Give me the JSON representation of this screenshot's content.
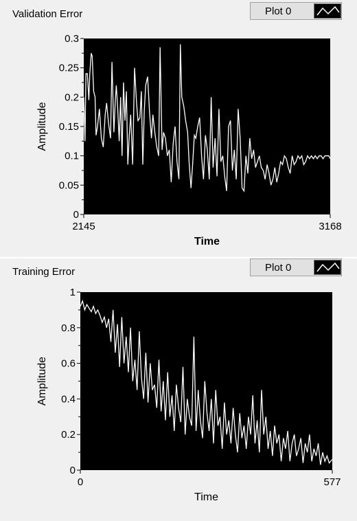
{
  "chart_data": [
    {
      "type": "line",
      "title": "Validation Error",
      "xlabel": "Time",
      "ylabel": "Amplitude",
      "xlim": [
        2145,
        3168
      ],
      "ylim": [
        0,
        0.3
      ],
      "x_ticks": [
        "2145",
        "3168"
      ],
      "y_ticks": [
        "0",
        "0.05",
        "0.1",
        "0.15",
        "0.2",
        "0.25",
        "0.3"
      ],
      "grid": false,
      "background": "#000000",
      "line_color": "#ffffff",
      "legend": {
        "label": "Plot 0",
        "placement": "top-right"
      },
      "series": [
        {
          "x": [
            2145,
            2150,
            2154,
            2160,
            2166,
            2170,
            2176,
            2180,
            2186,
            2192,
            2196,
            2202,
            2210,
            2218,
            2226,
            2234,
            2240,
            2248,
            2256,
            2262,
            2270,
            2276,
            2280,
            2286,
            2292,
            2298,
            2304,
            2310,
            2316,
            2322,
            2328,
            2334,
            2340,
            2348,
            2356,
            2364,
            2370,
            2378,
            2384,
            2390,
            2396,
            2402,
            2410,
            2418,
            2426,
            2432,
            2440,
            2448,
            2456,
            2462,
            2470,
            2476,
            2484,
            2492,
            2500,
            2508,
            2516,
            2524,
            2532,
            2540,
            2546,
            2552,
            2560,
            2568,
            2576,
            2582,
            2590,
            2596,
            2604,
            2610,
            2618,
            2626,
            2634,
            2642,
            2650,
            2658,
            2666,
            2674,
            2682,
            2690,
            2698,
            2706,
            2714,
            2722,
            2730,
            2738,
            2746,
            2754,
            2762,
            2770,
            2778,
            2786,
            2794,
            2802,
            2810,
            2818,
            2826,
            2834,
            2842,
            2850,
            2858,
            2866,
            2874,
            2882,
            2890,
            2898,
            2906,
            2914,
            2922,
            2930,
            2938,
            2946,
            2954,
            2962,
            2970,
            2978,
            2986,
            2994,
            3002,
            3010,
            3018,
            3026,
            3034,
            3042,
            3050,
            3058,
            3066,
            3074,
            3082,
            3090,
            3098,
            3106,
            3114,
            3122,
            3130,
            3138,
            3146,
            3154,
            3162,
            3168
          ],
          "y": [
            0.2,
            0.125,
            0.24,
            0.24,
            0.195,
            0.24,
            0.275,
            0.27,
            0.21,
            0.2,
            0.135,
            0.15,
            0.18,
            0.13,
            0.115,
            0.17,
            0.19,
            0.155,
            0.13,
            0.26,
            0.14,
            0.195,
            0.22,
            0.18,
            0.125,
            0.2,
            0.1,
            0.225,
            0.16,
            0.21,
            0.085,
            0.135,
            0.17,
            0.085,
            0.25,
            0.19,
            0.16,
            0.165,
            0.21,
            0.085,
            0.175,
            0.22,
            0.235,
            0.175,
            0.13,
            0.17,
            0.14,
            0.115,
            0.1,
            0.285,
            0.11,
            0.14,
            0.13,
            0.1,
            0.11,
            0.055,
            0.12,
            0.15,
            0.09,
            0.06,
            0.29,
            0.2,
            0.185,
            0.16,
            0.14,
            0.09,
            0.045,
            0.08,
            0.135,
            0.13,
            0.15,
            0.165,
            0.1,
            0.06,
            0.135,
            0.11,
            0.06,
            0.2,
            0.08,
            0.13,
            0.065,
            0.18,
            0.09,
            0.1,
            0.065,
            0.04,
            0.15,
            0.16,
            0.075,
            0.11,
            0.06,
            0.18,
            0.13,
            0.045,
            0.04,
            0.1,
            0.07,
            0.13,
            0.095,
            0.11,
            0.08,
            0.09,
            0.1,
            0.08,
            0.075,
            0.06,
            0.085,
            0.07,
            0.05,
            0.06,
            0.08,
            0.055,
            0.07,
            0.09,
            0.085,
            0.1,
            0.095,
            0.08,
            0.07,
            0.1,
            0.085,
            0.09,
            0.1,
            0.095,
            0.1,
            0.085,
            0.09,
            0.1,
            0.095,
            0.1,
            0.095,
            0.1,
            0.095,
            0.1,
            0.1,
            0.095,
            0.1,
            0.1,
            0.1,
            0.095
          ]
        }
      ]
    },
    {
      "type": "line",
      "title": "Training Error",
      "xlabel": "Time",
      "ylabel": "Amplitude",
      "xlim": [
        0,
        577
      ],
      "ylim": [
        0,
        1
      ],
      "x_ticks": [
        "0",
        "577"
      ],
      "y_ticks": [
        "0",
        "0.2",
        "0.4",
        "0.6",
        "0.8",
        "1"
      ],
      "grid": false,
      "background": "#000000",
      "line_color": "#ffffff",
      "legend": {
        "label": "Plot 0",
        "placement": "top-right"
      },
      "series": [
        {
          "x": [
            0,
            5,
            10,
            15,
            20,
            25,
            30,
            35,
            40,
            45,
            50,
            55,
            60,
            65,
            70,
            75,
            80,
            85,
            90,
            95,
            100,
            105,
            110,
            115,
            120,
            125,
            130,
            135,
            140,
            145,
            150,
            155,
            160,
            165,
            170,
            175,
            180,
            185,
            190,
            195,
            200,
            205,
            210,
            215,
            220,
            225,
            230,
            235,
            240,
            245,
            250,
            255,
            260,
            265,
            270,
            275,
            280,
            285,
            290,
            295,
            300,
            305,
            310,
            315,
            320,
            325,
            330,
            335,
            340,
            345,
            350,
            355,
            360,
            365,
            370,
            375,
            380,
            385,
            390,
            395,
            400,
            405,
            410,
            415,
            420,
            425,
            430,
            435,
            440,
            445,
            450,
            455,
            460,
            465,
            470,
            475,
            480,
            485,
            490,
            495,
            500,
            505,
            510,
            515,
            520,
            525,
            530,
            535,
            540,
            545,
            550,
            555,
            560,
            565,
            570,
            577
          ],
          "y": [
            0.92,
            0.95,
            0.9,
            0.93,
            0.91,
            0.89,
            0.92,
            0.88,
            0.9,
            0.87,
            0.83,
            0.86,
            0.8,
            0.85,
            0.72,
            0.9,
            0.66,
            0.82,
            0.58,
            0.86,
            0.6,
            0.75,
            0.55,
            0.8,
            0.5,
            0.62,
            0.45,
            0.78,
            0.52,
            0.4,
            0.66,
            0.38,
            0.6,
            0.45,
            0.48,
            0.35,
            0.62,
            0.33,
            0.5,
            0.28,
            0.55,
            0.3,
            0.42,
            0.22,
            0.48,
            0.35,
            0.27,
            0.58,
            0.2,
            0.4,
            0.3,
            0.25,
            0.75,
            0.22,
            0.45,
            0.28,
            0.18,
            0.5,
            0.32,
            0.22,
            0.4,
            0.15,
            0.45,
            0.25,
            0.3,
            0.12,
            0.38,
            0.2,
            0.28,
            0.15,
            0.35,
            0.2,
            0.1,
            0.32,
            0.18,
            0.25,
            0.12,
            0.3,
            0.2,
            0.42,
            0.15,
            0.28,
            0.1,
            0.45,
            0.2,
            0.3,
            0.12,
            0.22,
            0.08,
            0.25,
            0.15,
            0.2,
            0.05,
            0.18,
            0.12,
            0.22,
            0.05,
            0.15,
            0.2,
            0.08,
            0.12,
            0.18,
            0.04,
            0.15,
            0.1,
            0.2,
            0.05,
            0.12,
            0.08,
            0.15,
            0.03,
            0.1,
            0.05,
            0.08,
            0.04,
            0.06
          ]
        }
      ]
    }
  ]
}
